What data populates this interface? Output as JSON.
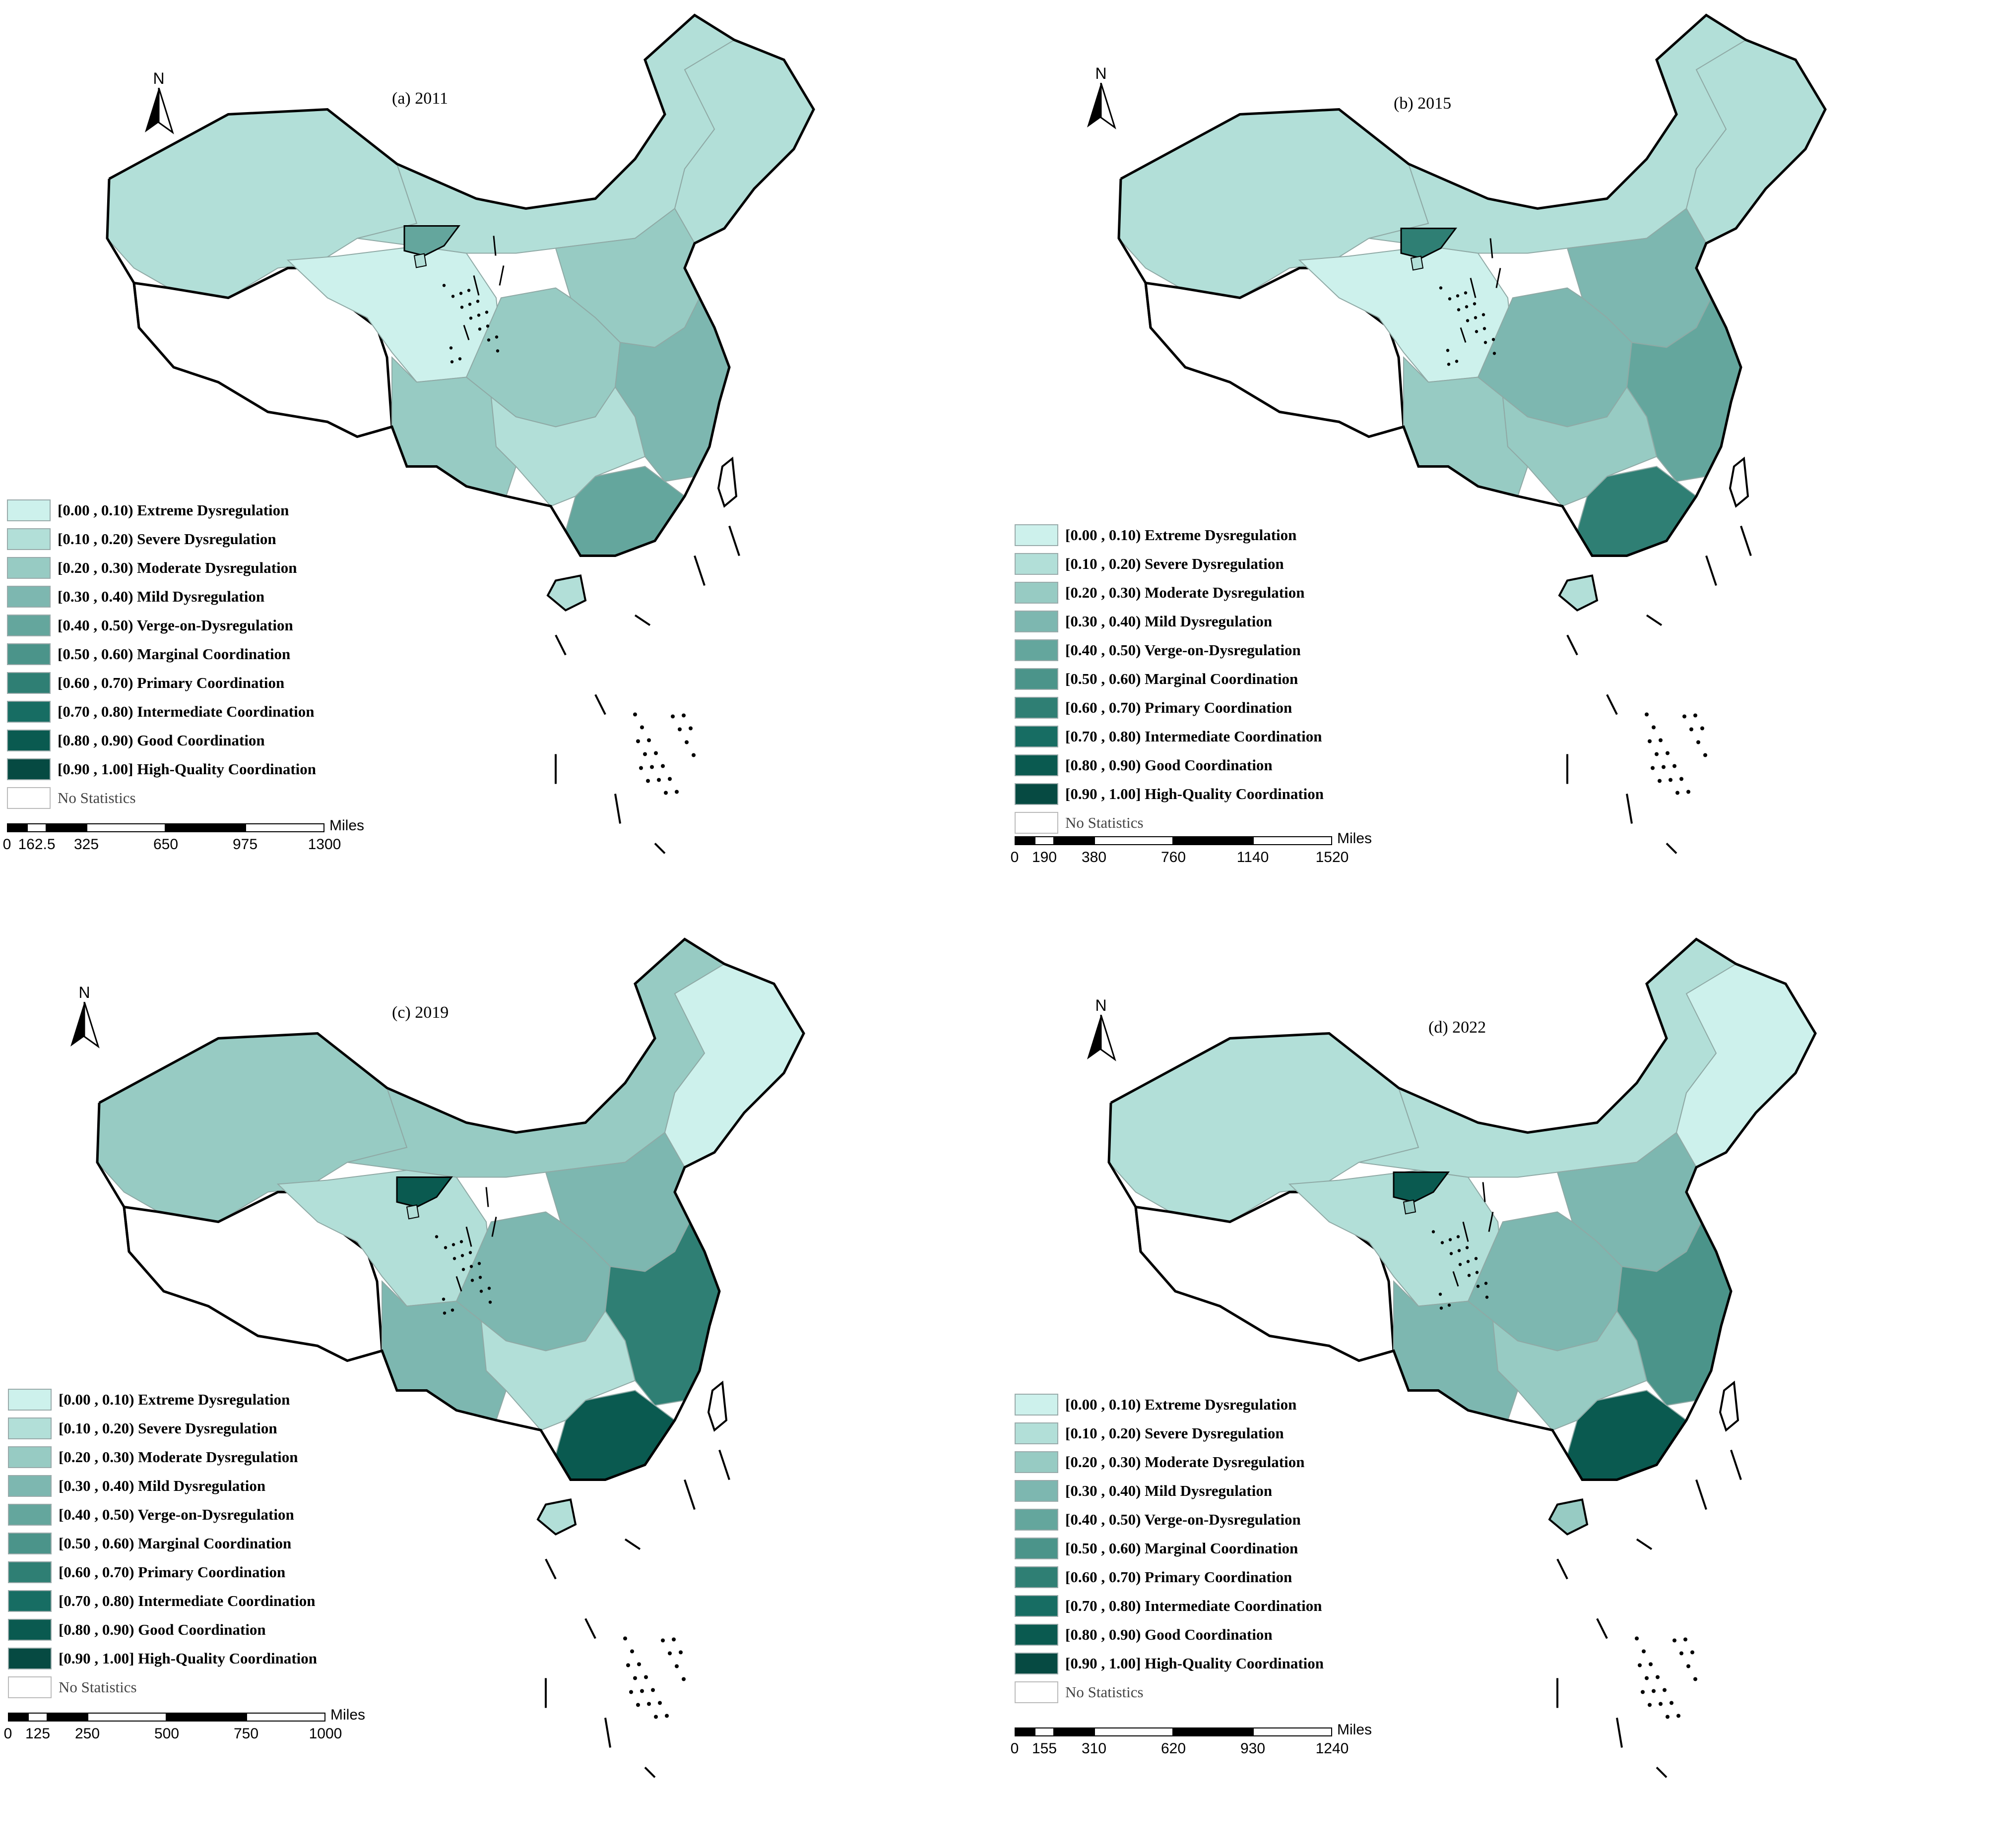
{
  "panels": [
    {
      "title": "(a) 2011",
      "scale": {
        "ticks": [
          "0",
          "162.5",
          "325",
          "650",
          "975",
          "1300"
        ],
        "unit": "Miles"
      }
    },
    {
      "title": "(b) 2015",
      "scale": {
        "ticks": [
          "0",
          "190",
          "380",
          "760",
          "1140",
          "1520"
        ],
        "unit": "Miles"
      }
    },
    {
      "title": "(c) 2019",
      "scale": {
        "ticks": [
          "0",
          "125",
          "250",
          "500",
          "750",
          "1000"
        ],
        "unit": "Miles"
      }
    },
    {
      "title": "(d) 2022",
      "scale": {
        "ticks": [
          "0",
          "155",
          "310",
          "620",
          "930",
          "1240"
        ],
        "unit": "Miles"
      }
    }
  ],
  "north_label": "N",
  "legend": [
    {
      "label": "[0.00 , 0.10)  Extreme Dysregulation",
      "color": "#cdf1ec"
    },
    {
      "label": "[0.10 , 0.20)  Severe Dysregulation",
      "color": "#b2dfd8"
    },
    {
      "label": "[0.20 , 0.30)  Moderate Dysregulation",
      "color": "#97cbc3"
    },
    {
      "label": "[0.30 , 0.40)  Mild Dysregulation",
      "color": "#7db7b0"
    },
    {
      "label": "[0.40 , 0.50)  Verge-on-Dysregulation",
      "color": "#64a69d"
    },
    {
      "label": "[0.50 , 0.60)  Marginal Coordination",
      "color": "#4b948a"
    },
    {
      "label": "[0.60 , 0.70)  Primary Coordination",
      "color": "#2f7f74"
    },
    {
      "label": "[0.70 , 0.80)  Intermediate Coordination",
      "color": "#176d63"
    },
    {
      "label": "[0.80 , 0.90)  Good Coordination",
      "color": "#0a5a50"
    },
    {
      "label": "[0.90 , 1.00]  High-Quality Coordination",
      "color": "#064a42"
    },
    {
      "label": "No Statistics",
      "color": "#ffffff"
    }
  ]
}
